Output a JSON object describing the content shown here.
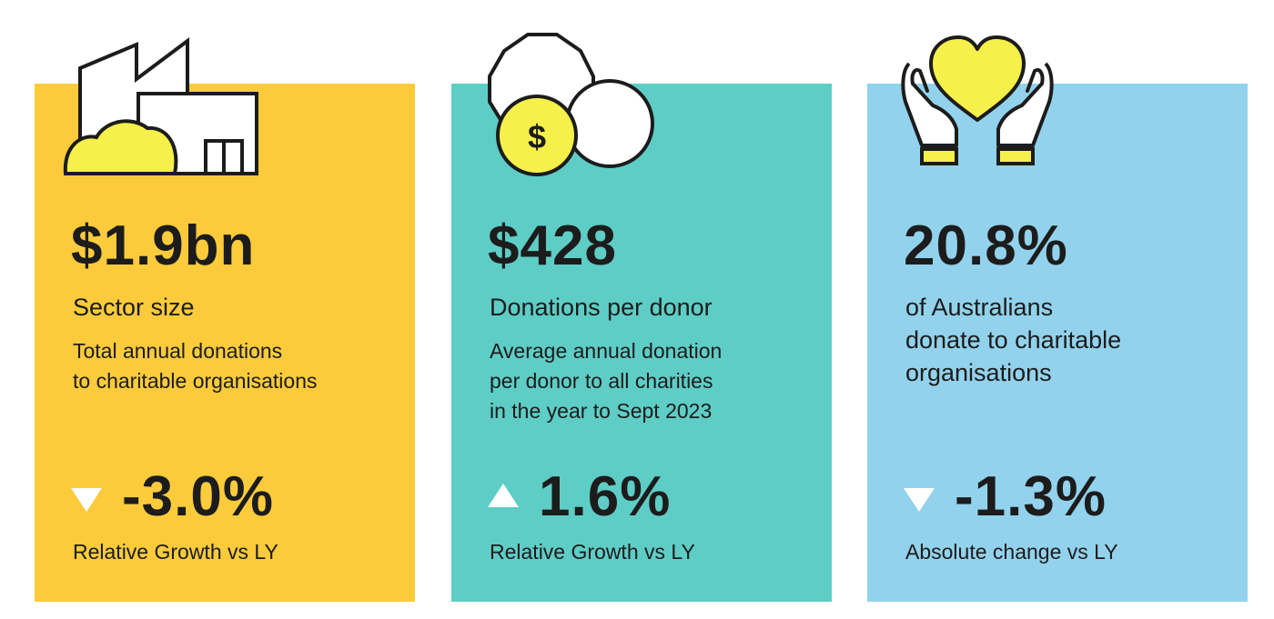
{
  "colors": {
    "card_yellow": "#fbcb3c",
    "card_teal": "#5ecdc6",
    "card_blue": "#92d2ec",
    "icon_yellow": "#f6f04a",
    "text": "#1c1c1c",
    "triangle": "#ffffff"
  },
  "cards": [
    {
      "icon": "building-icon",
      "value": "$1.9bn",
      "subtitle": "Sector size",
      "description": [
        "Total annual donations",
        "to charitable organisations"
      ],
      "trend": "down",
      "change": "-3.0%",
      "change_label": "Relative Growth vs LY"
    },
    {
      "icon": "coins-dollar-icon",
      "value": "$428",
      "subtitle": "Donations per donor",
      "description": [
        "Average annual donation",
        "per donor to all charities",
        "in the year to Sept 2023"
      ],
      "trend": "up",
      "change": "1.6%",
      "change_label": "Relative Growth vs LY"
    },
    {
      "icon": "hands-heart-icon",
      "value": "20.8%",
      "subtitle": [
        "of Australians",
        "donate to charitable",
        "organisations"
      ],
      "trend": "down",
      "change": "-1.3%",
      "change_label": "Absolute change vs LY"
    }
  ],
  "coin_symbol": "$"
}
